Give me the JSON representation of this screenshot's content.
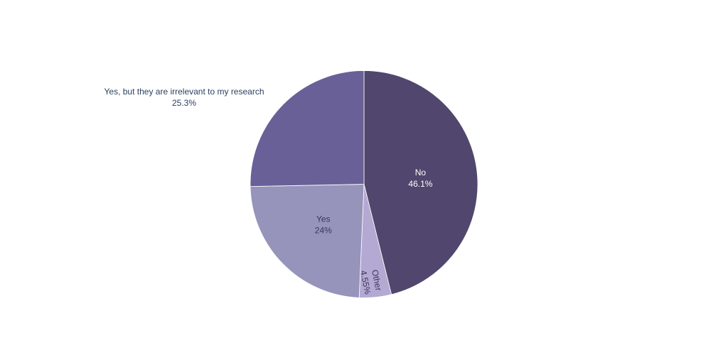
{
  "chart_data": {
    "type": "pie",
    "title": "",
    "slices": [
      {
        "label": "No",
        "value": 46.1,
        "text": "46.1%",
        "color": "#51466d",
        "label_color": "#ffffff"
      },
      {
        "label": "Other",
        "value": 4.55,
        "text": "4.55%",
        "color": "#b3a9d2",
        "label_color": "#3b3558"
      },
      {
        "label": "Yes",
        "value": 24.0,
        "text": "24%",
        "color": "#9694ba",
        "label_color": "#3b3558"
      },
      {
        "label": "Yes, but they are irrelevant to my research",
        "value": 25.3,
        "text": "25.3%",
        "color": "#6a6098",
        "label_color": "#2a3f5f"
      }
    ],
    "direction": "clockwise",
    "legend": "none"
  }
}
